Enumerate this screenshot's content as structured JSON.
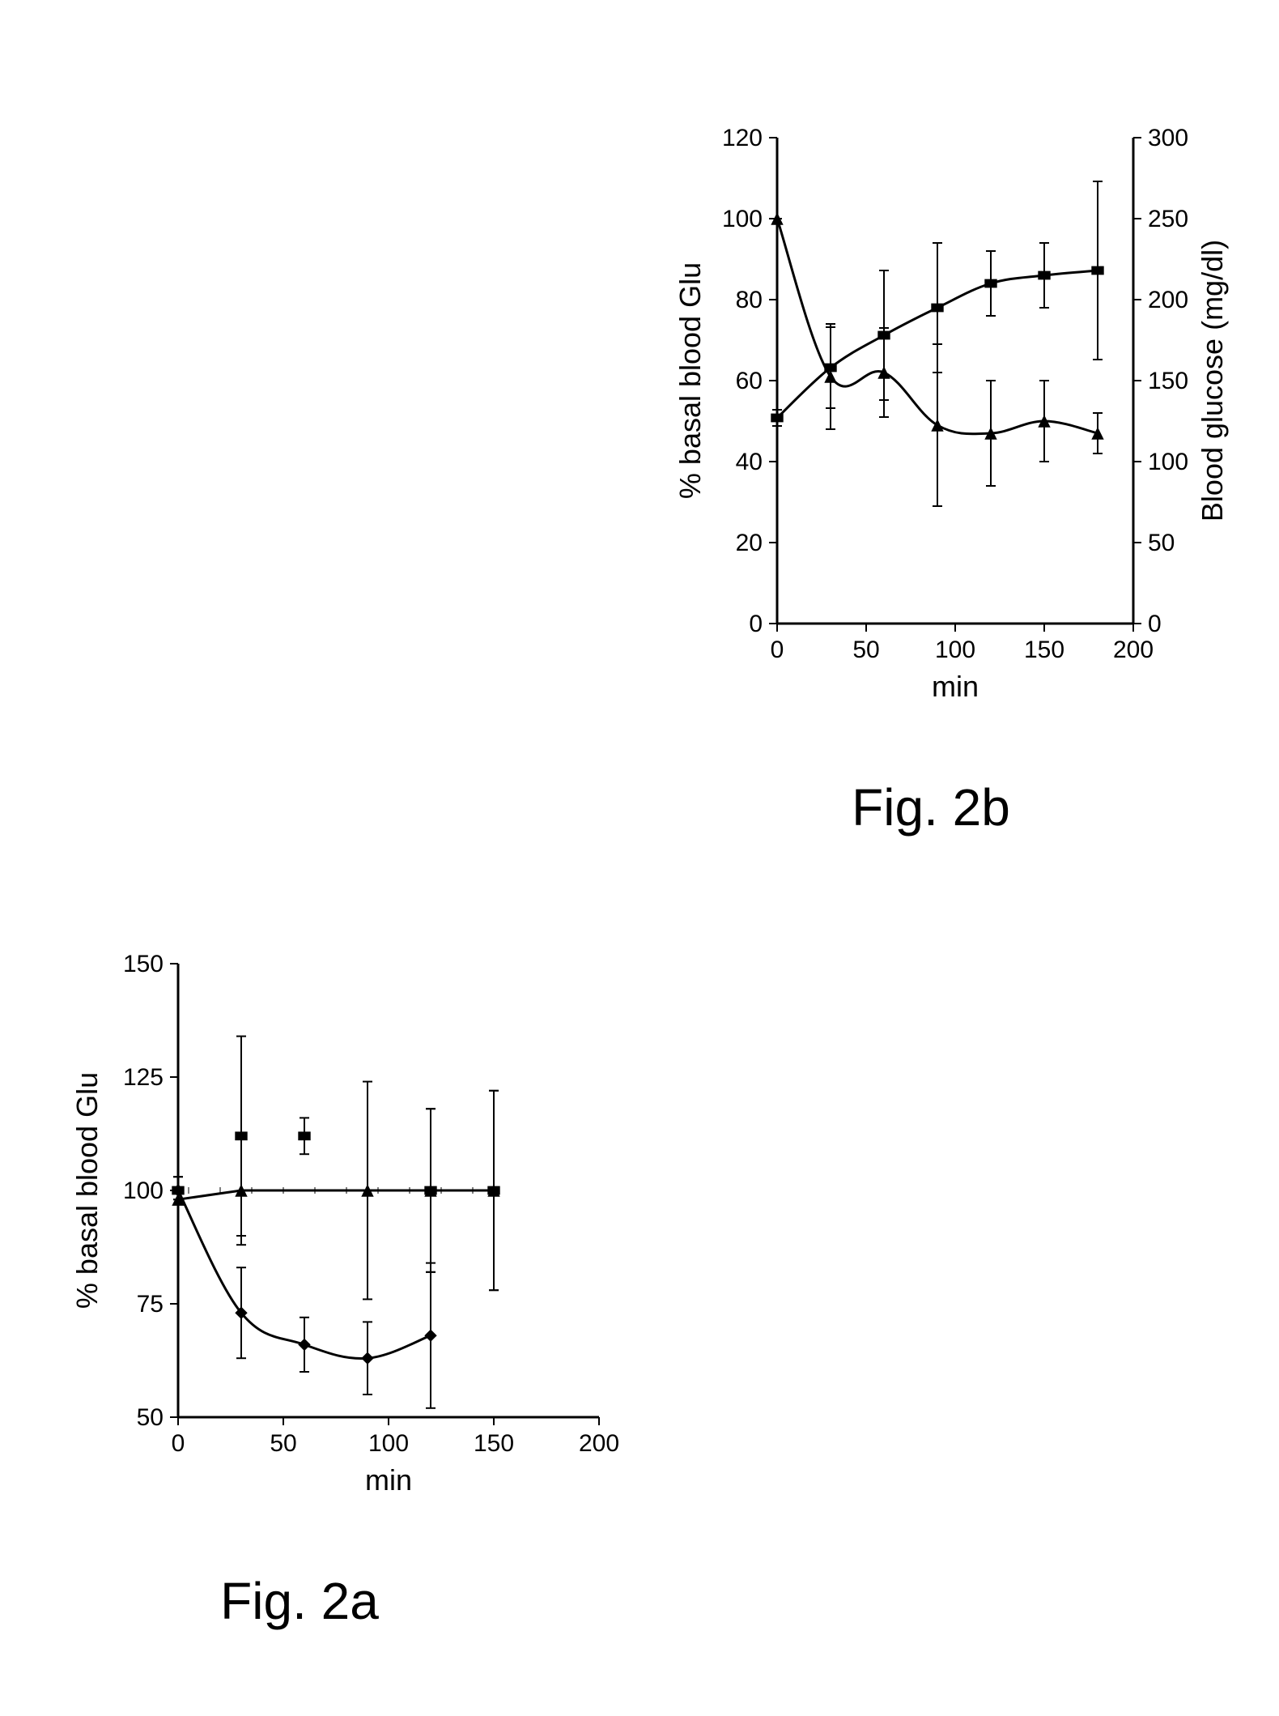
{
  "figA": {
    "caption": "Fig. 2a",
    "type": "line-scatter",
    "xlabel": "min",
    "ylabel": "% basal blood Glu",
    "label_fontsize": 36,
    "tick_fontsize": 30,
    "axis_color": "#000000",
    "background_color": "#ffffff",
    "xlim": [
      0,
      200
    ],
    "ylim": [
      50,
      150
    ],
    "xticks": [
      0,
      50,
      100,
      150,
      200
    ],
    "yticks": [
      50,
      75,
      100,
      125,
      150
    ],
    "series": [
      {
        "marker": "square",
        "color": "#000000",
        "marker_size": 10,
        "line_width": 0,
        "points": [
          {
            "x": 0,
            "y": 100,
            "err": 3
          },
          {
            "x": 30,
            "y": 112,
            "err": 22
          },
          {
            "x": 60,
            "y": 112,
            "err": 4
          },
          {
            "x": 120,
            "y": 100,
            "err": 18
          },
          {
            "x": 150,
            "y": 100,
            "err": 22
          }
        ]
      },
      {
        "marker": "triangle",
        "color": "#000000",
        "marker_size": 10,
        "line_width": 3,
        "points": [
          {
            "x": 0,
            "y": 98,
            "err": 0
          },
          {
            "x": 30,
            "y": 100,
            "err": 12
          },
          {
            "x": 90,
            "y": 100,
            "err": 24
          },
          {
            "x": 120,
            "y": 100,
            "err": 18
          },
          {
            "x": 150,
            "y": 100,
            "err": 22
          }
        ]
      },
      {
        "marker": "diamond",
        "color": "#000000",
        "marker_size": 10,
        "line_width": 3,
        "curve": true,
        "points": [
          {
            "x": 0,
            "y": 100,
            "err": 3
          },
          {
            "x": 30,
            "y": 73,
            "err": 10
          },
          {
            "x": 60,
            "y": 66,
            "err": 6
          },
          {
            "x": 90,
            "y": 63,
            "err": 8
          },
          {
            "x": 120,
            "y": 68,
            "err": 16
          }
        ]
      }
    ]
  },
  "figB": {
    "caption": "Fig. 2b",
    "type": "line-scatter-dual-y",
    "xlabel": "min",
    "ylabel": "% basal blood Glu",
    "y2label": "Blood glucose (mg/dl)",
    "label_fontsize": 36,
    "tick_fontsize": 30,
    "axis_color": "#000000",
    "background_color": "#ffffff",
    "xlim": [
      0,
      200
    ],
    "ylim": [
      0,
      120
    ],
    "y2lim": [
      0,
      300
    ],
    "xticks": [
      0,
      50,
      100,
      150,
      200
    ],
    "yticks": [
      0,
      20,
      40,
      60,
      80,
      100,
      120
    ],
    "y2ticks": [
      0,
      50,
      100,
      150,
      200,
      250,
      300
    ],
    "series": [
      {
        "marker": "square",
        "axis": "y2",
        "color": "#000000",
        "marker_size": 10,
        "line_width": 3,
        "curve": true,
        "points": [
          {
            "x": 0,
            "y": 127,
            "err": 5
          },
          {
            "x": 30,
            "y": 158,
            "err": 25
          },
          {
            "x": 60,
            "y": 178,
            "err": 40
          },
          {
            "x": 90,
            "y": 195,
            "err": 40
          },
          {
            "x": 120,
            "y": 210,
            "err": 20
          },
          {
            "x": 150,
            "y": 215,
            "err": 20
          },
          {
            "x": 180,
            "y": 218,
            "err": 55
          }
        ]
      },
      {
        "marker": "triangle",
        "axis": "y",
        "color": "#000000",
        "marker_size": 10,
        "line_width": 3,
        "curve": true,
        "points": [
          {
            "x": 0,
            "y": 100,
            "err": 0
          },
          {
            "x": 30,
            "y": 61,
            "err": 13
          },
          {
            "x": 60,
            "y": 62,
            "err": 11
          },
          {
            "x": 90,
            "y": 49,
            "err": 20
          },
          {
            "x": 120,
            "y": 47,
            "err": 13
          },
          {
            "x": 150,
            "y": 50,
            "err": 10
          },
          {
            "x": 180,
            "y": 47,
            "err": 5
          }
        ]
      }
    ]
  }
}
